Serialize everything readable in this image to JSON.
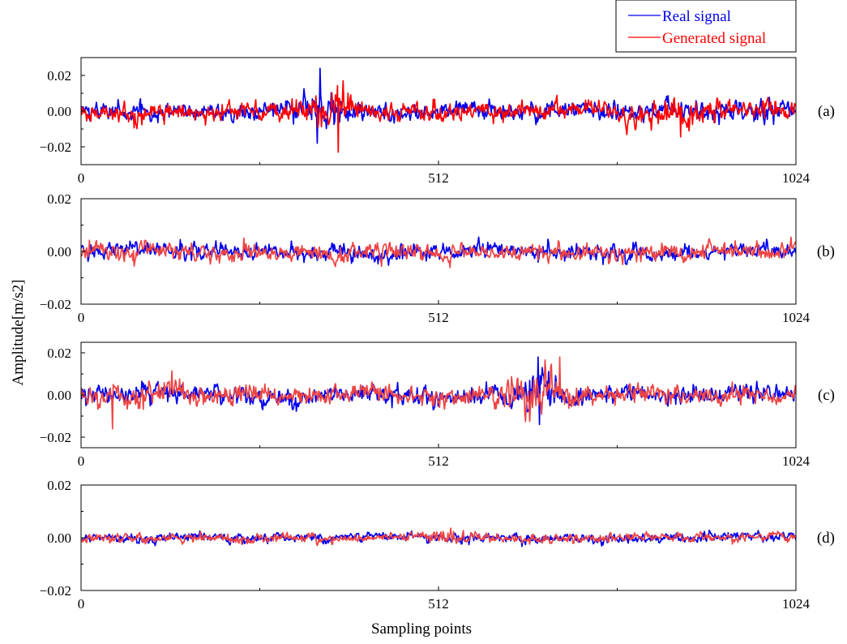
{
  "legend": {
    "items": [
      {
        "label": "Real signal",
        "color": "#0000ee"
      },
      {
        "label": "Generated signal",
        "color": "#ff0000"
      }
    ]
  },
  "y_axis_title": "Amplitude[m/s2]",
  "x_axis_title": "Sampling points",
  "chart_data": [
    {
      "type": "line",
      "panel_label": "(a)",
      "xlim": [
        0,
        1024
      ],
      "ylim": [
        -0.03,
        0.03
      ],
      "x_ticks": [
        0,
        512,
        1024
      ],
      "x_tick_labels": [
        "0",
        "512",
        "1024"
      ],
      "y_ticks": [
        0.02,
        0.0,
        -0.02
      ],
      "y_tick_labels": [
        "0.02",
        "0.00",
        "−0.02"
      ],
      "series": [
        {
          "name": "Real signal",
          "color": "#0000ee",
          "n_points": 1024,
          "approx_std": 0.0045,
          "bursts": [
            {
              "center": 340,
              "width": 35,
              "gain": 2.2
            },
            {
              "center": 940,
              "width": 60,
              "gain": 1.5
            }
          ],
          "notable_points": [
            [
              342,
              0.024
            ],
            [
              338,
              -0.018
            ]
          ]
        },
        {
          "name": "Generated signal",
          "color": "#ff0000",
          "n_points": 1024,
          "approx_std": 0.005,
          "bursts": [
            {
              "center": 360,
              "width": 35,
              "gain": 2.3
            },
            {
              "center": 855,
              "width": 60,
              "gain": 1.6
            }
          ],
          "notable_points": [
            [
              368,
              -0.023
            ],
            [
              375,
              0.017
            ]
          ]
        }
      ]
    },
    {
      "type": "line",
      "panel_label": "(b)",
      "xlim": [
        0,
        1024
      ],
      "ylim": [
        -0.02,
        0.02
      ],
      "x_ticks": [
        0,
        512,
        1024
      ],
      "x_tick_labels": [
        "0",
        "512",
        "1024"
      ],
      "y_ticks": [
        0.02,
        0.0,
        -0.02
      ],
      "y_tick_labels": [
        "0.02",
        "0.00",
        "−0.02"
      ],
      "series": [
        {
          "name": "Real signal",
          "color": "#0000ee",
          "n_points": 1024,
          "approx_std": 0.0028,
          "bursts": []
        },
        {
          "name": "Generated signal",
          "color": "#ee4444",
          "n_points": 1024,
          "approx_std": 0.003,
          "bursts": []
        }
      ]
    },
    {
      "type": "line",
      "panel_label": "(c)",
      "xlim": [
        0,
        1024
      ],
      "ylim": [
        -0.025,
        0.025
      ],
      "x_ticks": [
        0,
        512,
        1024
      ],
      "x_tick_labels": [
        "0",
        "512",
        "1024"
      ],
      "y_ticks": [
        0.02,
        0.0,
        -0.02
      ],
      "y_tick_labels": [
        "0.02",
        "0.00",
        "−0.02"
      ],
      "series": [
        {
          "name": "Real signal",
          "color": "#0000ee",
          "n_points": 1024,
          "approx_std": 0.004,
          "bursts": [
            {
              "center": 650,
              "width": 40,
              "gain": 2.4
            }
          ],
          "notable_points": [
            [
              654,
              0.018
            ],
            [
              656,
              -0.014
            ]
          ]
        },
        {
          "name": "Generated signal",
          "color": "#ee4444",
          "n_points": 1024,
          "approx_std": 0.004,
          "bursts": [
            {
              "center": 640,
              "width": 50,
              "gain": 2.4
            },
            {
              "center": 100,
              "width": 60,
              "gain": 1.6
            }
          ],
          "notable_points": [
            [
              685,
              0.018
            ],
            [
              45,
              -0.016
            ]
          ]
        }
      ]
    },
    {
      "type": "line",
      "panel_label": "(d)",
      "xlim": [
        0,
        1024
      ],
      "ylim": [
        -0.02,
        0.02
      ],
      "x_ticks": [
        0,
        512,
        1024
      ],
      "x_tick_labels": [
        "0",
        "512",
        "1024"
      ],
      "y_ticks": [
        0.02,
        0.0,
        -0.02
      ],
      "y_tick_labels": [
        "0.02",
        "0.00",
        "−0.02"
      ],
      "series": [
        {
          "name": "Real signal",
          "color": "#0000ee",
          "n_points": 1024,
          "approx_std": 0.0016,
          "bursts": []
        },
        {
          "name": "Generated signal",
          "color": "#ee4444",
          "n_points": 1024,
          "approx_std": 0.0016,
          "bursts": [
            {
              "center": 520,
              "width": 25,
              "gain": 2.2
            }
          ]
        }
      ]
    }
  ]
}
